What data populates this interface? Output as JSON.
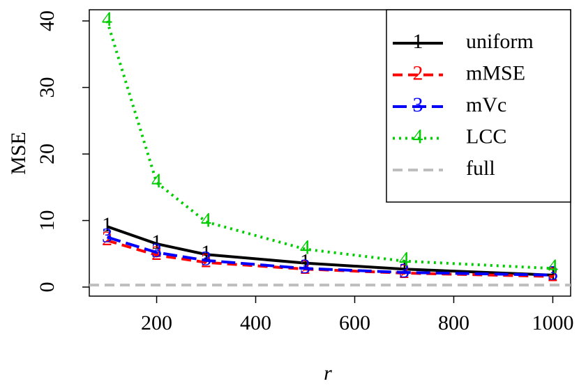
{
  "chart_data": {
    "type": "line",
    "x_label": "r",
    "y_label": "MSE",
    "x": [
      100,
      200,
      300,
      500,
      700,
      1000
    ],
    "series": [
      {
        "name": "uniform",
        "pch": "1",
        "color": "#000000",
        "linestyle": "solid",
        "values": [
          9.1,
          6.5,
          4.9,
          3.6,
          2.7,
          1.8
        ]
      },
      {
        "name": "mMSE",
        "pch": "2",
        "color": "#ff0000",
        "linestyle": "dashed",
        "values": [
          7.0,
          4.8,
          3.7,
          2.7,
          2.1,
          1.6
        ]
      },
      {
        "name": "mVc",
        "pch": "3",
        "color": "#0000ff",
        "linestyle": "longdash",
        "values": [
          7.5,
          5.2,
          4.0,
          2.8,
          2.2,
          1.8
        ]
      },
      {
        "name": "LCC",
        "pch": "4",
        "color": "#00cd00",
        "linestyle": "dotted",
        "values": [
          40.0,
          15.7,
          9.8,
          5.7,
          3.9,
          2.8
        ]
      }
    ],
    "reference_line": {
      "name": "full",
      "color": "#bebebe",
      "linestyle": "dashed",
      "value": 0.3
    },
    "xlim": [
      64,
      1036
    ],
    "ylim": [
      -1.36,
      41.68
    ],
    "xticks": [
      200,
      400,
      600,
      800,
      1000
    ],
    "yticks": [
      0,
      10,
      20,
      30,
      40
    ],
    "legend": "top-right"
  }
}
